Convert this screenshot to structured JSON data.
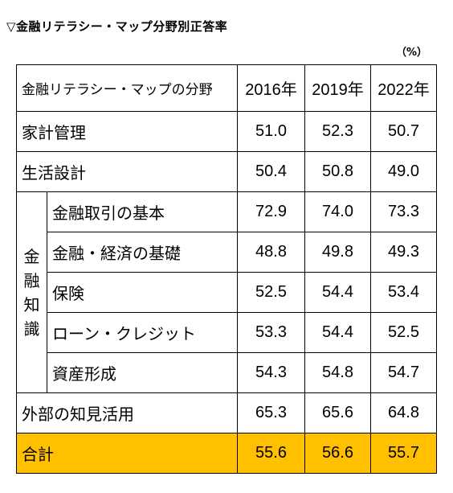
{
  "title": "▽金融リテラシー・マップ分野別正答率",
  "unit": "（%）",
  "table": {
    "header": {
      "category": "金融リテラシー・マップの分野",
      "years": [
        "2016年",
        "2019年",
        "2022年"
      ]
    },
    "rows": [
      {
        "label": "家計管理",
        "values": [
          "51.0",
          "52.3",
          "50.7"
        ]
      },
      {
        "label": "生活設計",
        "values": [
          "50.4",
          "50.8",
          "49.0"
        ]
      }
    ],
    "group": {
      "label_chars": [
        "金",
        "融",
        "知",
        "識"
      ],
      "rows": [
        {
          "label": "金融取引の基本",
          "values": [
            "72.9",
            "74.0",
            "73.3"
          ]
        },
        {
          "label": "金融・経済の基礎",
          "values": [
            "48.8",
            "49.8",
            "49.3"
          ]
        },
        {
          "label": "保険",
          "values": [
            "52.5",
            "54.4",
            "53.4"
          ]
        },
        {
          "label": "ローン・クレジット",
          "values": [
            "53.3",
            "54.4",
            "52.5"
          ]
        },
        {
          "label": "資産形成",
          "values": [
            "54.3",
            "54.8",
            "54.7"
          ]
        }
      ]
    },
    "after_rows": [
      {
        "label": "外部の知見活用",
        "values": [
          "65.3",
          "65.6",
          "64.8"
        ]
      }
    ],
    "total": {
      "label": "合計",
      "values": [
        "55.6",
        "56.6",
        "55.7"
      ]
    },
    "total_color": "#ffc000"
  }
}
